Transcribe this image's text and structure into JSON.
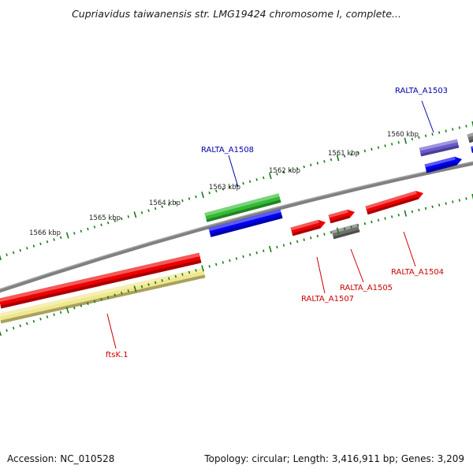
{
  "title": "Cupriavidus taiwanensis str. LMG19424 chromosome I, complete...",
  "footer": {
    "accession": "Accession: NC_010528",
    "stats": "Topology: circular; Length: 3,416,911 bp; Genes: 3,209"
  },
  "ticks": [
    "1566 kbp",
    "1565 kbp",
    "1564 kbp",
    "1563 kbp",
    "1562 kbp",
    "1561 kbp",
    "1560 kbp"
  ],
  "genes": [
    {
      "label": "RALTA_A1503",
      "color": "#0000aa"
    },
    {
      "label": "RALTA_A1508",
      "color": "#0000aa"
    },
    {
      "label": "RALTA_A1504",
      "color": "#cc0000"
    },
    {
      "label": "RALTA_A1505",
      "color": "#cc0000"
    },
    {
      "label": "RALTA_A1507",
      "color": "#cc0000"
    },
    {
      "label": "ftsK.1",
      "color": "#cc0000"
    }
  ],
  "colors": {
    "backbone": "#808080",
    "tick_marks": "#1a7a1a",
    "cds_red": "#ee0000",
    "cds_blue": "#0000ee",
    "cds_green": "#33bb33",
    "cds_purple": "#6a5acd",
    "cds_yellow": "#f0e68c",
    "cds_gray": "#707070",
    "label_blue": "#0000aa",
    "label_red": "#cc0000"
  },
  "legend_icons": [
    "circular-map-icon"
  ]
}
